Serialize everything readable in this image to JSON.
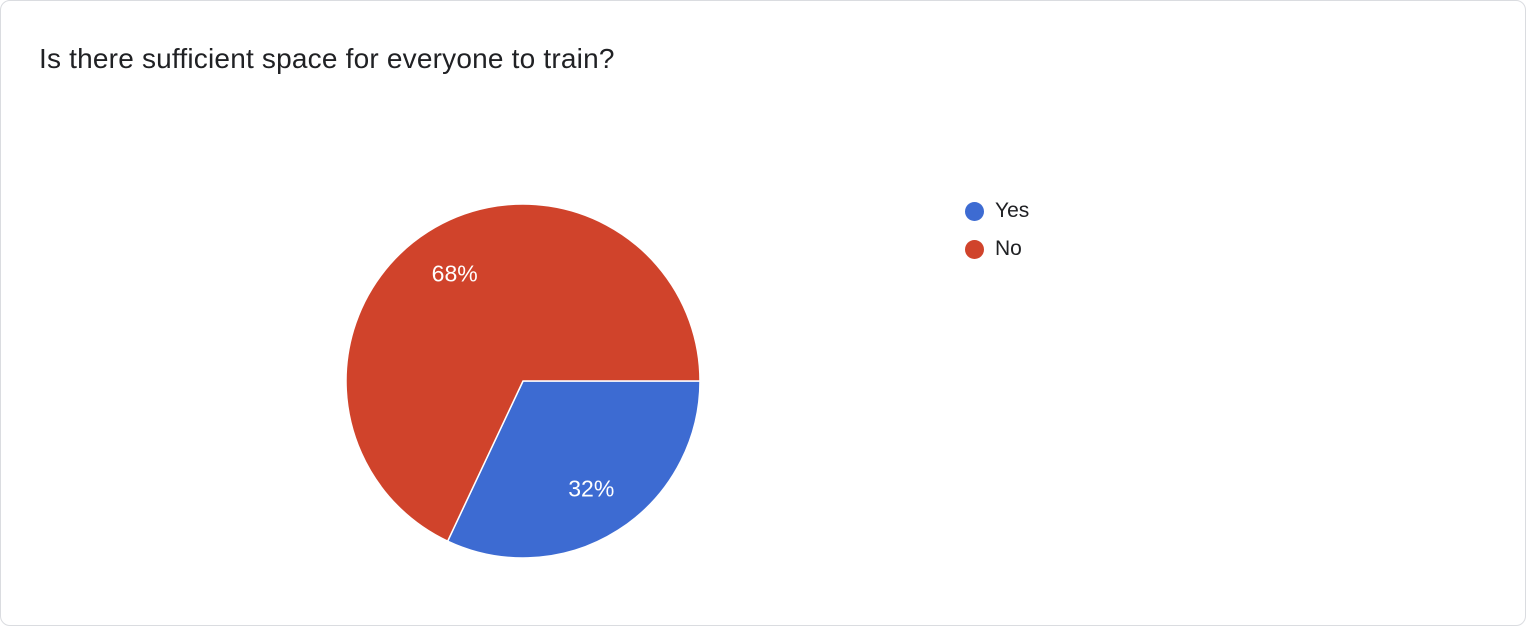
{
  "chart_data": {
    "type": "pie",
    "title": "Is there sufficient space for everyone to train?",
    "categories": [
      "Yes",
      "No"
    ],
    "values": [
      32,
      68
    ],
    "value_labels": [
      "32%",
      "68%"
    ],
    "unit": "%",
    "colors": [
      "#3d6bd2",
      "#d0432b"
    ],
    "slice_label_color": "#ffffff",
    "slice_border_color": "#ffffff",
    "legend_position": "right",
    "start_angle_deg": 0,
    "direction": "clockwise"
  }
}
